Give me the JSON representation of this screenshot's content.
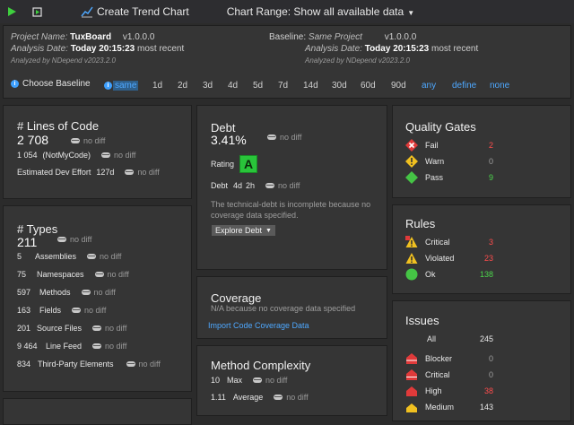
{
  "toolbar": {
    "create_trend_chart": "Create Trend Chart",
    "chart_range": "Chart Range: Show all available data"
  },
  "header": {
    "project_name_label": "Project Name:",
    "project_name": "TuxBoard",
    "project_version": "v1.0.0.0",
    "analysis_date_label": "Analysis Date:",
    "analysis_date": "Today 20:15:23",
    "analysis_date_suffix": "most recent",
    "analyzed_by": "Analyzed by NDepend v2023.2.0",
    "baseline_label": "Baseline:",
    "baseline_name": "Same Project",
    "baseline_version": "v1.0.0.0",
    "baseline_analysis_date_label": "Analysis Date:",
    "baseline_analysis_date": "Today 20:15:23",
    "baseline_analysis_suffix": "most recent",
    "baseline_analyzed_by": "Analyzed by NDepend v2023.2.0",
    "choose_baseline": "Choose Baseline",
    "options": [
      "same",
      "1d",
      "2d",
      "3d",
      "4d",
      "5d",
      "7d",
      "14d",
      "30d",
      "60d",
      "90d",
      "any",
      "define",
      "none"
    ]
  },
  "loc": {
    "title": "# Lines of Code",
    "value": "2 708",
    "nodiff": "no diff",
    "notmycode_value": "1 054",
    "notmycode_label": "(NotMyCode)",
    "effort_label": "Estimated Dev Effort",
    "effort_value": "127d"
  },
  "types": {
    "title": "# Types",
    "value": "211",
    "nodiff": "no diff",
    "rows": [
      {
        "value": "5",
        "label": "Assemblies"
      },
      {
        "value": "75",
        "label": "Namespaces"
      },
      {
        "value": "597",
        "label": "Methods"
      },
      {
        "value": "163",
        "label": "Fields"
      },
      {
        "value": "201",
        "label": "Source Files"
      },
      {
        "value": "9 464",
        "label": "Line Feed"
      },
      {
        "value": "834",
        "label": "Third-Party Elements"
      }
    ]
  },
  "debt": {
    "title": "Debt",
    "value": "3.41%",
    "nodiff": "no diff",
    "rating_label": "Rating",
    "rating": "A",
    "debt_label": "Debt",
    "debt_days": "4d",
    "debt_hours": "2h",
    "note": "The technical-debt is incomplete because no coverage data specified.",
    "explore": "Explore Debt"
  },
  "coverage": {
    "title": "Coverage",
    "note": "N/A because no coverage data specified",
    "import": "Import Code Coverage Data"
  },
  "complexity": {
    "title": "Method Complexity",
    "max_value": "10",
    "max_label": "Max",
    "avg_value": "1.11",
    "avg_label": "Average",
    "nodiff": "no diff"
  },
  "quality_gates": {
    "title": "Quality Gates",
    "rows": [
      {
        "label": "Fail",
        "value": "2",
        "color": "#ff4d4d"
      },
      {
        "label": "Warn",
        "value": "0",
        "color": "#9e9e9e"
      },
      {
        "label": "Pass",
        "value": "9",
        "color": "#4cd64c"
      }
    ]
  },
  "rules": {
    "title": "Rules",
    "rows": [
      {
        "label": "Critical",
        "value": "3",
        "color": "#ff4d4d"
      },
      {
        "label": "Violated",
        "value": "23",
        "color": "#ff4d4d"
      },
      {
        "label": "Ok",
        "value": "138",
        "color": "#4cd64c"
      }
    ]
  },
  "issues": {
    "title": "Issues",
    "all_label": "All",
    "all_value": "245",
    "rows": [
      {
        "label": "Blocker",
        "value": "0",
        "color": "#9e9e9e"
      },
      {
        "label": "Critical",
        "value": "0",
        "color": "#9e9e9e"
      },
      {
        "label": "High",
        "value": "38",
        "color": "#ff4d4d"
      },
      {
        "label": "Medium",
        "value": "143",
        "color": "#e8e8e8"
      }
    ]
  },
  "colors": {
    "accent_link": "#4ea8ff",
    "rating_green": "#29c43a",
    "panel_bg": "#353535"
  }
}
